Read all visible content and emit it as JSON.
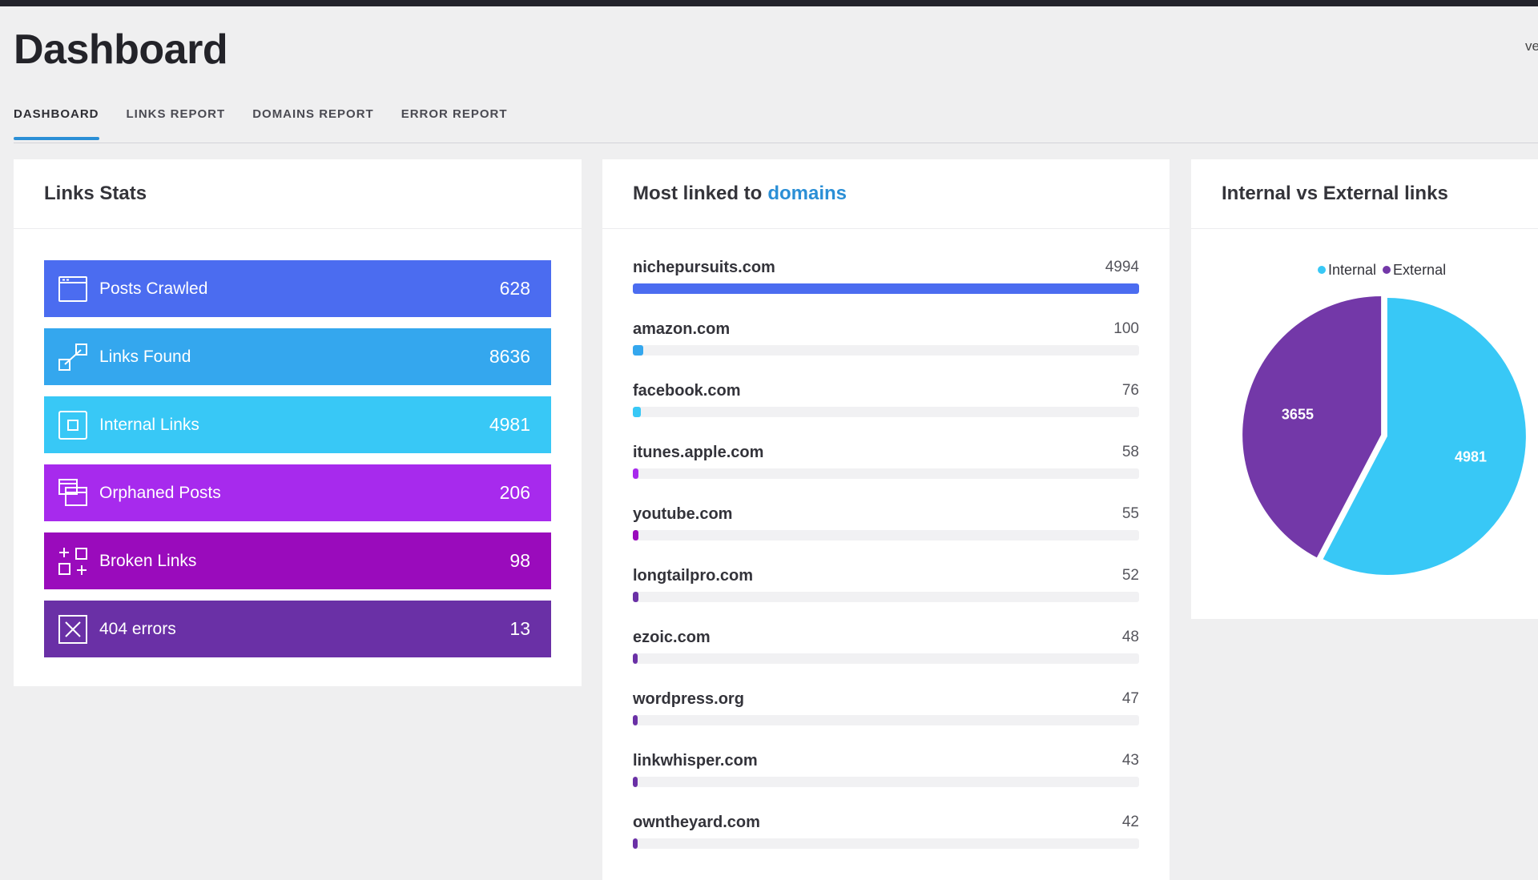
{
  "header": {
    "title": "Dashboard",
    "version_text": "ve"
  },
  "tabs": [
    {
      "label": "DASHBOARD",
      "active": true
    },
    {
      "label": "LINKS REPORT",
      "active": false
    },
    {
      "label": "DOMAINS REPORT",
      "active": false
    },
    {
      "label": "ERROR REPORT",
      "active": false
    }
  ],
  "links_stats": {
    "title": "Links Stats",
    "items": [
      {
        "label": "Posts Crawled",
        "value": "628",
        "color": "#4b6cf0",
        "icon": "browser-window-icon"
      },
      {
        "label": "Links Found",
        "value": "8636",
        "color": "#34a7ee",
        "icon": "link-icon"
      },
      {
        "label": "Internal Links",
        "value": "4981",
        "color": "#38c8f6",
        "icon": "internal-link-icon"
      },
      {
        "label": "Orphaned Posts",
        "value": "206",
        "color": "#a72aed",
        "icon": "stacked-windows-icon"
      },
      {
        "label": "Broken Links",
        "value": "98",
        "color": "#9a0bbc",
        "icon": "broken-link-icon"
      },
      {
        "label": "404 errors",
        "value": "13",
        "color": "#6a30a6",
        "icon": "close-box-icon"
      }
    ]
  },
  "domains": {
    "title_prefix": "Most linked to",
    "title_link": "domains",
    "accent": "#2b8fd6",
    "max": 4994,
    "items": [
      {
        "name": "nichepursuits.com",
        "count": "4994",
        "value": 4994,
        "color": "#4b6cf0"
      },
      {
        "name": "amazon.com",
        "count": "100",
        "value": 100,
        "color": "#34a7ee"
      },
      {
        "name": "facebook.com",
        "count": "76",
        "value": 76,
        "color": "#38c8f6"
      },
      {
        "name": "itunes.apple.com",
        "count": "58",
        "value": 58,
        "color": "#a72aed"
      },
      {
        "name": "youtube.com",
        "count": "55",
        "value": 55,
        "color": "#9a0bbc"
      },
      {
        "name": "longtailpro.com",
        "count": "52",
        "value": 52,
        "color": "#6a30a6"
      },
      {
        "name": "ezoic.com",
        "count": "48",
        "value": 48,
        "color": "#6a30a6"
      },
      {
        "name": "wordpress.org",
        "count": "47",
        "value": 47,
        "color": "#6a30a6"
      },
      {
        "name": "linkwhisper.com",
        "count": "43",
        "value": 43,
        "color": "#6a30a6"
      },
      {
        "name": "owntheyard.com",
        "count": "42",
        "value": 42,
        "color": "#6a30a6"
      }
    ]
  },
  "pie": {
    "title": "Internal vs External links",
    "legend": [
      {
        "label": "Internal",
        "color": "#38c8f6"
      },
      {
        "label": "External",
        "color": "#7338a8"
      }
    ],
    "chart_data": {
      "type": "pie",
      "series": [
        {
          "name": "Internal",
          "value": 4981,
          "label": "4981",
          "color": "#38c8f6"
        },
        {
          "name": "External",
          "value": 3655,
          "label": "3655",
          "color": "#7338a8"
        }
      ]
    }
  }
}
